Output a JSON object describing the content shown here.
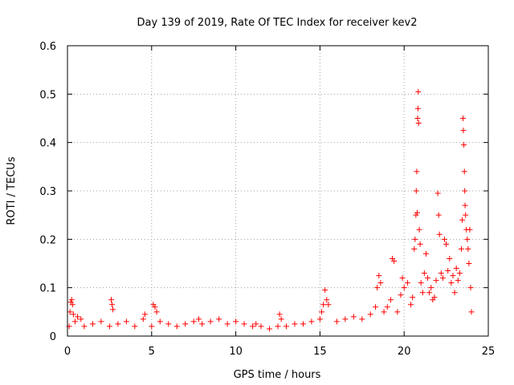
{
  "chart_data": {
    "type": "scatter",
    "title": "Day 139 of 2019, Rate Of TEC Index for receiver kev2",
    "xlabel": "GPS time / hours",
    "ylabel": "ROTI / TECUs",
    "xlim": [
      0,
      25
    ],
    "ylim": [
      0,
      0.6
    ],
    "xticks": [
      "0",
      "5",
      "10",
      "15",
      "20",
      "25"
    ],
    "yticks": [
      "0",
      "0.1",
      "0.2",
      "0.3",
      "0.4",
      "0.5",
      "0.6"
    ],
    "grid": true,
    "marker": "+",
    "color": "#ff0000",
    "series": [
      {
        "points": [
          [
            0.1,
            0.02
          ],
          [
            0.15,
            0.05
          ],
          [
            0.2,
            0.07
          ],
          [
            0.25,
            0.075
          ],
          [
            0.3,
            0.065
          ],
          [
            0.35,
            0.045
          ],
          [
            0.45,
            0.03
          ],
          [
            0.6,
            0.04
          ],
          [
            0.8,
            0.035
          ],
          [
            1.0,
            0.02
          ],
          [
            1.5,
            0.025
          ],
          [
            2.0,
            0.03
          ],
          [
            2.5,
            0.02
          ],
          [
            2.6,
            0.075
          ],
          [
            2.65,
            0.065
          ],
          [
            2.7,
            0.055
          ],
          [
            3.0,
            0.025
          ],
          [
            3.5,
            0.03
          ],
          [
            4.0,
            0.02
          ],
          [
            4.5,
            0.035
          ],
          [
            4.6,
            0.045
          ],
          [
            5.0,
            0.02
          ],
          [
            5.1,
            0.065
          ],
          [
            5.2,
            0.06
          ],
          [
            5.3,
            0.05
          ],
          [
            5.5,
            0.03
          ],
          [
            6.0,
            0.025
          ],
          [
            6.5,
            0.02
          ],
          [
            7.0,
            0.025
          ],
          [
            7.5,
            0.03
          ],
          [
            7.8,
            0.035
          ],
          [
            8.0,
            0.025
          ],
          [
            8.5,
            0.03
          ],
          [
            9.0,
            0.035
          ],
          [
            9.5,
            0.025
          ],
          [
            10.0,
            0.03
          ],
          [
            10.5,
            0.025
          ],
          [
            11.0,
            0.02
          ],
          [
            11.2,
            0.025
          ],
          [
            11.5,
            0.02
          ],
          [
            12.0,
            0.015
          ],
          [
            12.5,
            0.02
          ],
          [
            12.6,
            0.045
          ],
          [
            12.7,
            0.035
          ],
          [
            13.0,
            0.02
          ],
          [
            13.5,
            0.025
          ],
          [
            14.0,
            0.025
          ],
          [
            14.5,
            0.03
          ],
          [
            15.0,
            0.035
          ],
          [
            15.1,
            0.05
          ],
          [
            15.2,
            0.065
          ],
          [
            15.3,
            0.095
          ],
          [
            15.4,
            0.075
          ],
          [
            15.5,
            0.065
          ],
          [
            16.0,
            0.03
          ],
          [
            16.5,
            0.035
          ],
          [
            17.0,
            0.04
          ],
          [
            17.5,
            0.035
          ],
          [
            18.0,
            0.045
          ],
          [
            18.3,
            0.06
          ],
          [
            18.4,
            0.1
          ],
          [
            18.5,
            0.125
          ],
          [
            18.6,
            0.11
          ],
          [
            18.8,
            0.05
          ],
          [
            19.0,
            0.06
          ],
          [
            19.2,
            0.075
          ],
          [
            19.3,
            0.16
          ],
          [
            19.4,
            0.155
          ],
          [
            19.6,
            0.05
          ],
          [
            19.8,
            0.085
          ],
          [
            19.9,
            0.12
          ],
          [
            20.0,
            0.1
          ],
          [
            20.2,
            0.11
          ],
          [
            20.4,
            0.065
          ],
          [
            20.5,
            0.08
          ],
          [
            20.6,
            0.18
          ],
          [
            20.65,
            0.2
          ],
          [
            20.7,
            0.25
          ],
          [
            20.72,
            0.3
          ],
          [
            20.75,
            0.34
          ],
          [
            20.78,
            0.255
          ],
          [
            20.8,
            0.45
          ],
          [
            20.82,
            0.47
          ],
          [
            20.84,
            0.505
          ],
          [
            20.86,
            0.44
          ],
          [
            20.9,
            0.22
          ],
          [
            20.95,
            0.19
          ],
          [
            21.0,
            0.11
          ],
          [
            21.1,
            0.09
          ],
          [
            21.2,
            0.13
          ],
          [
            21.3,
            0.17
          ],
          [
            21.4,
            0.12
          ],
          [
            21.5,
            0.09
          ],
          [
            21.6,
            0.1
          ],
          [
            21.7,
            0.075
          ],
          [
            21.8,
            0.08
          ],
          [
            21.9,
            0.115
          ],
          [
            22.0,
            0.295
          ],
          [
            22.05,
            0.25
          ],
          [
            22.1,
            0.21
          ],
          [
            22.2,
            0.13
          ],
          [
            22.3,
            0.12
          ],
          [
            22.4,
            0.2
          ],
          [
            22.5,
            0.19
          ],
          [
            22.6,
            0.135
          ],
          [
            22.7,
            0.16
          ],
          [
            22.8,
            0.11
          ],
          [
            22.9,
            0.125
          ],
          [
            23.0,
            0.09
          ],
          [
            23.1,
            0.14
          ],
          [
            23.2,
            0.115
          ],
          [
            23.3,
            0.13
          ],
          [
            23.4,
            0.18
          ],
          [
            23.45,
            0.24
          ],
          [
            23.5,
            0.45
          ],
          [
            23.52,
            0.425
          ],
          [
            23.55,
            0.395
          ],
          [
            23.58,
            0.34
          ],
          [
            23.6,
            0.3
          ],
          [
            23.62,
            0.27
          ],
          [
            23.65,
            0.25
          ],
          [
            23.7,
            0.22
          ],
          [
            23.75,
            0.2
          ],
          [
            23.8,
            0.18
          ],
          [
            23.85,
            0.15
          ],
          [
            23.9,
            0.22
          ],
          [
            23.95,
            0.1
          ],
          [
            24.0,
            0.05
          ]
        ]
      }
    ]
  }
}
